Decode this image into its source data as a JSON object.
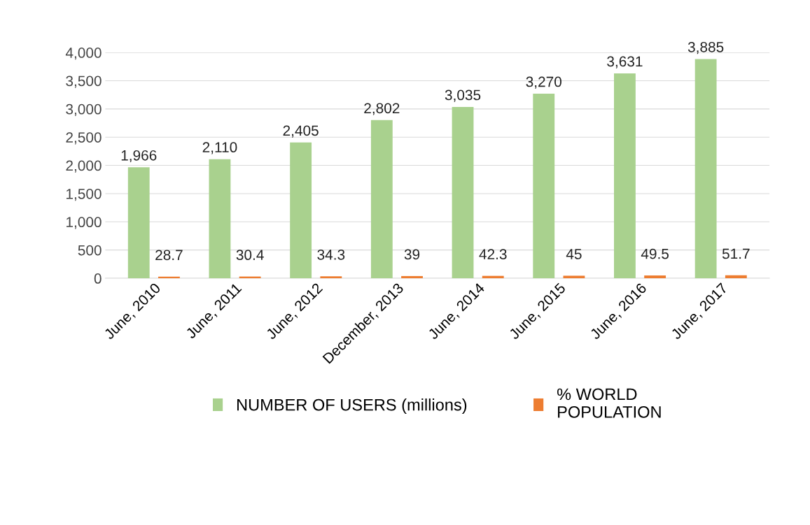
{
  "chart_data": {
    "type": "bar",
    "categories": [
      "June, 2010",
      "June, 2011",
      "June, 2012",
      "December, 2013",
      "June, 2014",
      "June, 2015",
      "June, 2016",
      "June, 2017"
    ],
    "series": [
      {
        "name": "NUMBER OF USERS (millions)",
        "color": "#a9d18e",
        "values": [
          1966,
          2110,
          2405,
          2802,
          3035,
          3270,
          3631,
          3885
        ],
        "value_labels": [
          "1,966",
          "2,110",
          "2,405",
          "2,802",
          "3,035",
          "3,270",
          "3,631",
          "3,885"
        ]
      },
      {
        "name": "% WORLD\nPOPULATION",
        "color": "#ed7d31",
        "values": [
          28.7,
          30.4,
          34.3,
          39,
          42.3,
          45,
          49.5,
          51.7
        ],
        "value_labels": [
          "28.7",
          "30.4",
          "34.3",
          "39",
          "42.3",
          "45",
          "49.5",
          "51.7"
        ]
      }
    ],
    "ylim": [
      0,
      4000
    ],
    "yticks": [
      0,
      500,
      {
        "value": 1000,
        "label": "1,000"
      },
      {
        "value": 1500,
        "label": "1,500"
      },
      {
        "value": 2000,
        "label": "2,000"
      },
      {
        "value": 2500,
        "label": "2,500"
      },
      {
        "value": 3000,
        "label": "3,000"
      },
      {
        "value": 3500,
        "label": "3,500"
      },
      {
        "value": 4000,
        "label": "4,000"
      }
    ],
    "grid": "y",
    "legend": "bottom"
  }
}
